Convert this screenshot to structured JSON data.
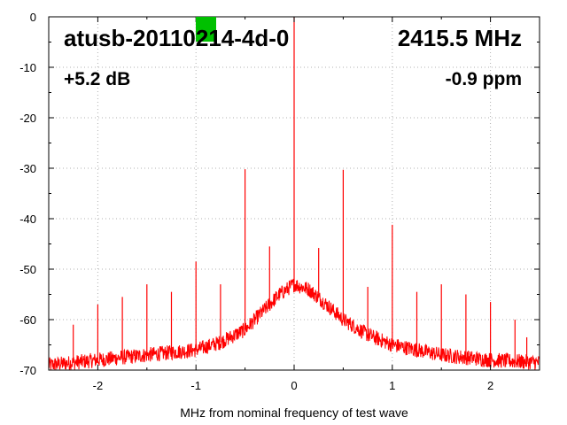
{
  "annotations": {
    "device": "atusb-20110214-4d-0",
    "frequency": "2415.5 MHz",
    "gain": "+5.2 dB",
    "deviation": "-0.9 ppm",
    "status_color": "#00c000"
  },
  "chart_data": {
    "type": "line",
    "title": "",
    "xlabel": "MHz from nominal frequency of test wave",
    "ylabel": "",
    "xlim": [
      -2.5,
      2.5
    ],
    "ylim": [
      -70,
      0
    ],
    "xticks": [
      -2,
      -1,
      0,
      1,
      2
    ],
    "yticks": [
      0,
      -10,
      -20,
      -30,
      -40,
      -50,
      -60,
      -70
    ],
    "grid": true,
    "legend": "none",
    "series_color": "#ff0000",
    "noise_envelope": {
      "x": [
        -2.5,
        -2.0,
        -1.5,
        -1.0,
        -0.75,
        -0.5,
        -0.3,
        -0.15,
        0.0,
        0.15,
        0.3,
        0.5,
        0.75,
        1.0,
        1.5,
        2.0,
        2.5
      ],
      "floor": [
        -69,
        -68,
        -67,
        -66,
        -64.5,
        -62,
        -58,
        -55,
        -53,
        -54,
        -56.5,
        -60,
        -63,
        -65,
        -67,
        -68,
        -68.5
      ]
    },
    "spurs": [
      {
        "x": -2.25,
        "y": -61
      },
      {
        "x": -2.0,
        "y": -57
      },
      {
        "x": -1.75,
        "y": -55.5
      },
      {
        "x": -1.5,
        "y": -53
      },
      {
        "x": -1.25,
        "y": -54.5
      },
      {
        "x": -1.0,
        "y": -48.5
      },
      {
        "x": -0.75,
        "y": -53
      },
      {
        "x": -0.5,
        "y": -30.2
      },
      {
        "x": -0.25,
        "y": -45.5
      },
      {
        "x": 0.0,
        "y": 0
      },
      {
        "x": 0.25,
        "y": -45.8
      },
      {
        "x": 0.5,
        "y": -30.3
      },
      {
        "x": 0.75,
        "y": -53.5
      },
      {
        "x": 1.0,
        "y": -41.2
      },
      {
        "x": 1.25,
        "y": -54.5
      },
      {
        "x": 1.5,
        "y": -53
      },
      {
        "x": 1.75,
        "y": -55
      },
      {
        "x": 2.0,
        "y": -56.5
      },
      {
        "x": 2.25,
        "y": -60
      },
      {
        "x": 2.37,
        "y": -63.5
      }
    ]
  }
}
